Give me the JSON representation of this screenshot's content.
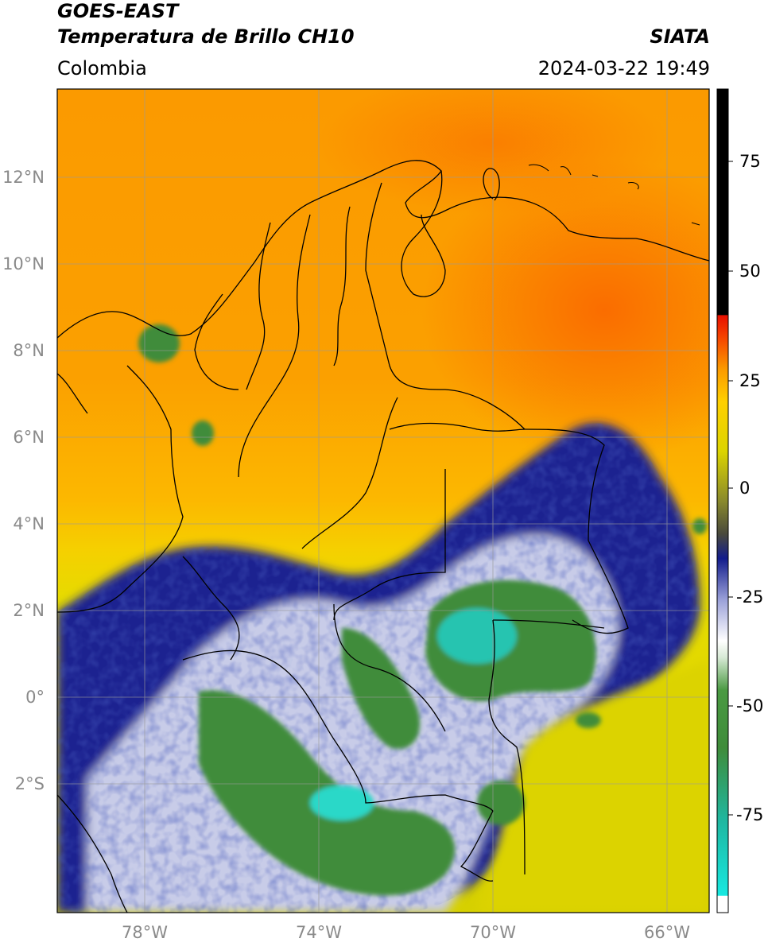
{
  "header": {
    "satellite": "GOES-EAST",
    "product": "Temperatura de Brillo CH10",
    "region": "Colombia",
    "agency": "SIATA",
    "datetime": "2024-03-22 19:49"
  },
  "map": {
    "lon_range": [
      -80,
      -65
    ],
    "lat_range": [
      -5.2,
      14
    ],
    "lon_ticks": [
      "78°W",
      "74°W",
      "70°W",
      "66°W"
    ],
    "lat_ticks": [
      "12°N",
      "10°N",
      "8°N",
      "6°N",
      "4°N",
      "2°N",
      "0°",
      "2°S"
    ],
    "gridlines": true,
    "colors": {
      "warm_orange": "#fb9300",
      "hot_orange": "#fa6a00",
      "mid_yellow": "#d8d300",
      "olive": "#8a8a2c",
      "navy": "#121c8c",
      "white": "#ffffff",
      "green": "#3f8c3a",
      "cyan": "#2ad8c8"
    }
  },
  "colorbar": {
    "ticks": [
      "75",
      "50",
      "25",
      "0",
      "-25",
      "-50",
      "-75"
    ],
    "range": [
      -95,
      90
    ]
  }
}
